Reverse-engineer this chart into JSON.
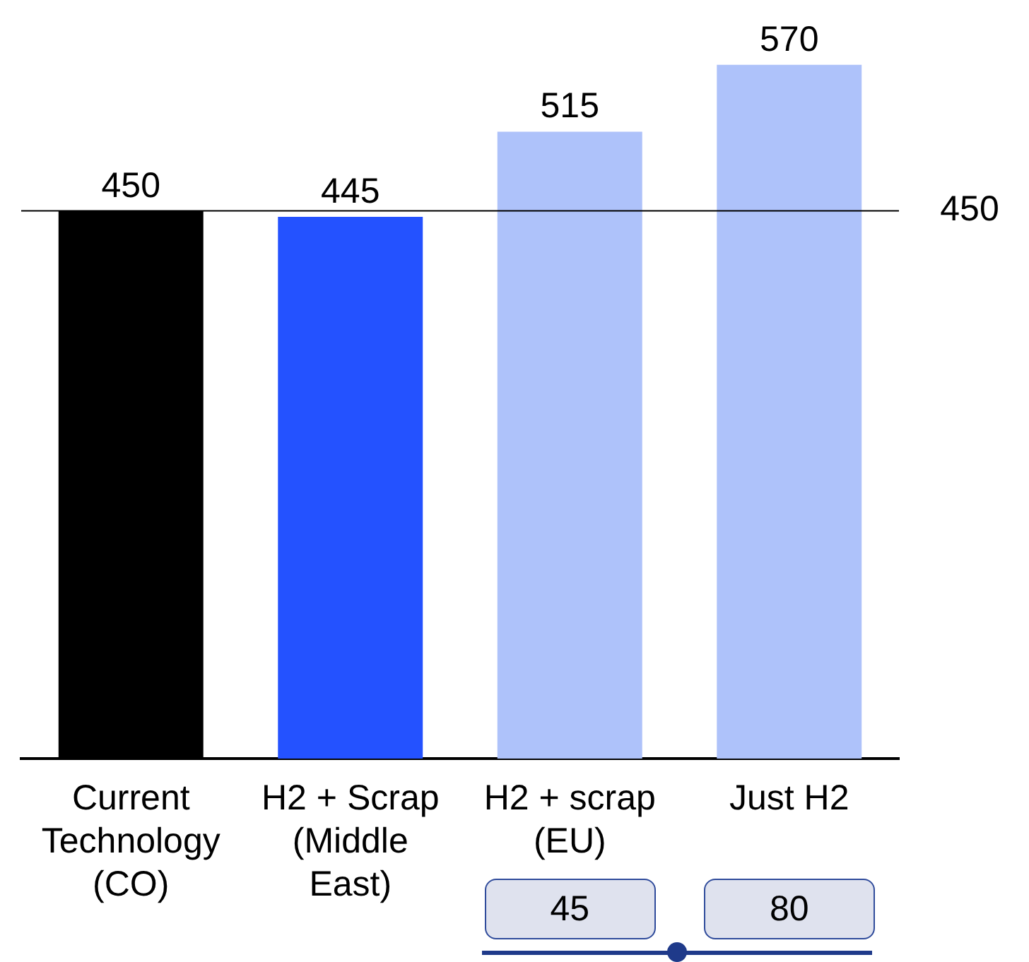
{
  "chart_data": {
    "type": "bar",
    "categories": [
      "Current Technology (CO)",
      "H2 + Scrap (Middle East)",
      "H2 + scrap (EU)",
      "Just H2"
    ],
    "values": [
      450,
      445,
      515,
      570
    ],
    "colors": [
      "#000000",
      "#2452ff",
      "#aec2fa",
      "#aec2fa"
    ],
    "tick_labels": "x",
    "data_labels": true,
    "ref_lines": [
      {
        "axis": "y",
        "value": 450,
        "label": "450",
        "color": "#000000"
      }
    ],
    "annotations": [
      "45",
      "80"
    ]
  }
}
